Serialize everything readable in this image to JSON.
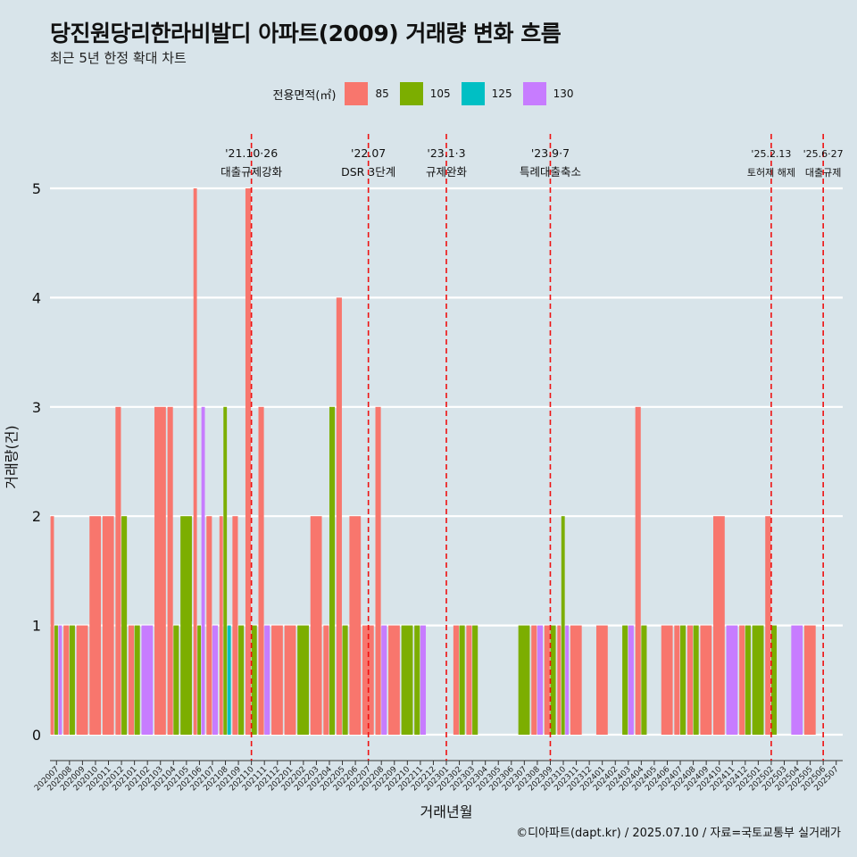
{
  "header": {
    "title": "당진원당리한라비발디 아파트(2009) 거래량 변화 흐름",
    "subtitle": "최근 5년 한정 확대 차트"
  },
  "legend": {
    "title": "전용면적(㎡)",
    "items": [
      {
        "label": "85",
        "color": "#f8766d"
      },
      {
        "label": "105",
        "color": "#7cae00"
      },
      {
        "label": "125",
        "color": "#00bfc4"
      },
      {
        "label": "130",
        "color": "#c77cff"
      }
    ]
  },
  "caption": "©디아파트(dapt.kr) / 2025.07.10 / 자료=국토교통부 실거래가",
  "chart_data": {
    "type": "bar",
    "xlabel": "거래년월",
    "ylabel": "거래량(건)",
    "ylim": [
      0,
      5
    ],
    "yticks": [
      0,
      1,
      2,
      3,
      4,
      5
    ],
    "grid": "horizontal",
    "legend_position": "top",
    "categories": [
      "202007",
      "202008",
      "202009",
      "202010",
      "202011",
      "202012",
      "202101",
      "202102",
      "202103",
      "202104",
      "202105",
      "202106",
      "202107",
      "202108",
      "202109",
      "202110",
      "202111",
      "202112",
      "202201",
      "202202",
      "202203",
      "202204",
      "202205",
      "202206",
      "202207",
      "202208",
      "202209",
      "202210",
      "202211",
      "202212",
      "202301",
      "202302",
      "202303",
      "202304",
      "202305",
      "202306",
      "202307",
      "202308",
      "202309",
      "202310",
      "202311",
      "202312",
      "202401",
      "202402",
      "202403",
      "202404",
      "202405",
      "202406",
      "202407",
      "202408",
      "202409",
      "202410",
      "202411",
      "202412",
      "202501",
      "202502",
      "202503",
      "202504",
      "202505",
      "202506",
      "202507"
    ],
    "series": [
      {
        "name": "85",
        "color": "#f8766d",
        "values": [
          2,
          1,
          1,
          2,
          2,
          3,
          1,
          0,
          3,
          3,
          0,
          5,
          2,
          2,
          2,
          5,
          3,
          1,
          1,
          0,
          2,
          1,
          4,
          2,
          1,
          3,
          1,
          0,
          0,
          0,
          0,
          1,
          1,
          0,
          0,
          0,
          0,
          1,
          1,
          1,
          1,
          0,
          1,
          0,
          0,
          3,
          0,
          1,
          1,
          1,
          1,
          2,
          0,
          1,
          0,
          2,
          0,
          0,
          1,
          0,
          0
        ]
      },
      {
        "name": "105",
        "color": "#7cae00",
        "values": [
          1,
          1,
          0,
          0,
          0,
          2,
          1,
          0,
          0,
          1,
          2,
          1,
          0,
          3,
          1,
          1,
          0,
          0,
          0,
          1,
          0,
          3,
          1,
          0,
          0,
          0,
          0,
          1,
          1,
          0,
          0,
          1,
          1,
          0,
          0,
          0,
          1,
          0,
          1,
          2,
          0,
          0,
          0,
          0,
          1,
          1,
          0,
          0,
          1,
          1,
          0,
          0,
          0,
          1,
          1,
          1,
          0,
          0,
          0,
          0,
          0
        ]
      },
      {
        "name": "125",
        "color": "#00bfc4",
        "values": [
          0,
          0,
          0,
          0,
          0,
          0,
          0,
          0,
          0,
          0,
          0,
          0,
          0,
          1,
          0,
          0,
          0,
          0,
          0,
          0,
          0,
          0,
          0,
          0,
          0,
          0,
          0,
          0,
          0,
          0,
          0,
          0,
          0,
          0,
          0,
          0,
          0,
          0,
          0,
          0,
          0,
          0,
          0,
          0,
          0,
          0,
          0,
          0,
          0,
          0,
          0,
          0,
          0,
          0,
          0,
          0,
          0,
          0,
          0,
          0,
          0
        ]
      },
      {
        "name": "130",
        "color": "#c77cff",
        "values": [
          1,
          0,
          0,
          0,
          0,
          0,
          0,
          1,
          0,
          0,
          0,
          3,
          1,
          0,
          0,
          0,
          1,
          0,
          0,
          0,
          0,
          0,
          0,
          0,
          0,
          1,
          0,
          0,
          1,
          0,
          0,
          0,
          0,
          0,
          0,
          0,
          0,
          1,
          0,
          1,
          0,
          0,
          0,
          0,
          1,
          0,
          0,
          0,
          0,
          0,
          0,
          0,
          1,
          0,
          0,
          0,
          0,
          1,
          0,
          0,
          0
        ]
      }
    ],
    "annotations": [
      {
        "x": "202110",
        "date": "'21.10·26",
        "label": "대출규제강화"
      },
      {
        "x": "202207",
        "date": "'22.07",
        "label": "DSR 3단계"
      },
      {
        "x": "202301",
        "date": "'23.1·3",
        "label": "규제완화"
      },
      {
        "x": "202309",
        "date": "'23.9·7",
        "label": "특례대출축소"
      },
      {
        "x": "202502",
        "date": "'25.2.13",
        "label": "토허제 해제"
      },
      {
        "x": "202506",
        "date": "'25.6·27",
        "label": "대출규제"
      }
    ]
  }
}
